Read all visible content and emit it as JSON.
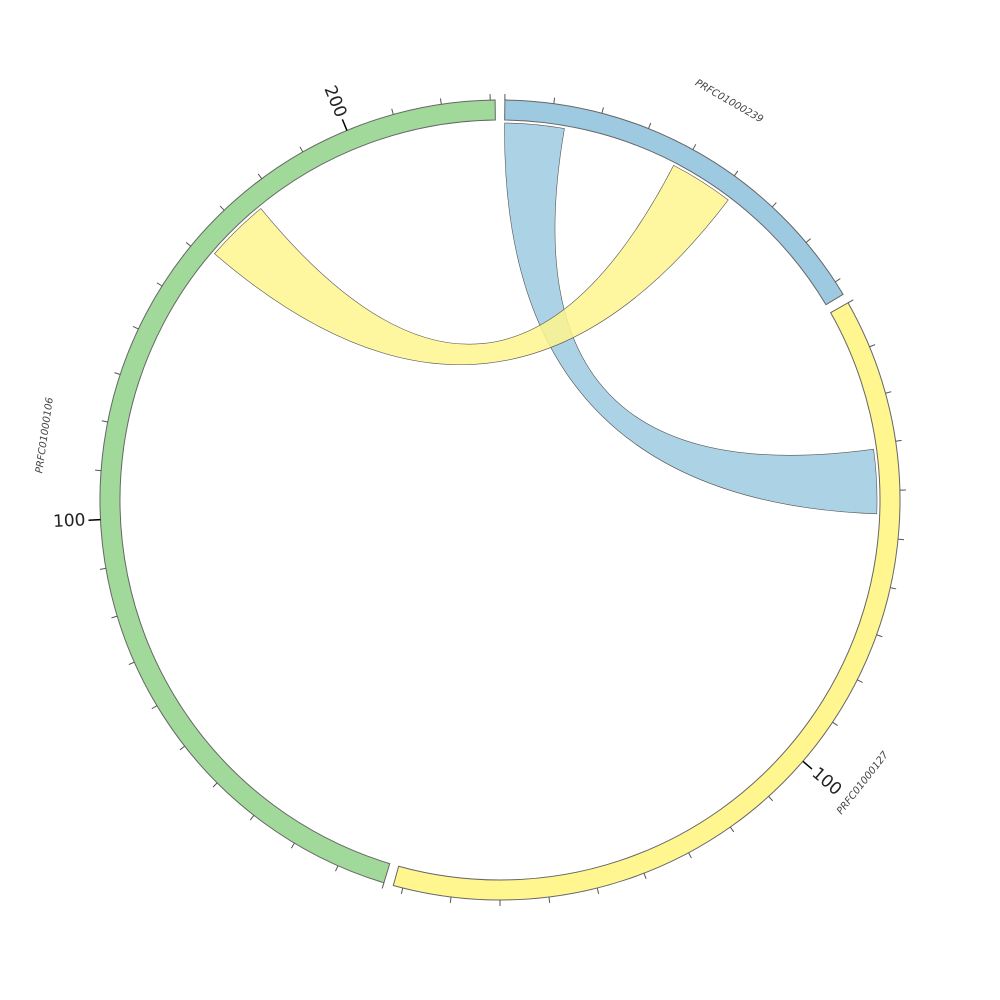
{
  "segments": [
    {
      "name": "PRFC01000239",
      "color": "#9ecae1",
      "length": 83,
      "major_ticks": []
    },
    {
      "name": "PRFC01000127",
      "color": "#fff68f",
      "length": 192,
      "major_ticks": [
        100
      ]
    },
    {
      "name": "PRFC01000106",
      "color": "#a1d99b",
      "length": 231,
      "major_ticks": [
        100,
        200
      ]
    }
  ],
  "tick_interval": 10,
  "links": [
    {
      "source": 0,
      "source_range": [
        0,
        13
      ],
      "target": 1,
      "target_range": [
        31,
        45
      ],
      "color": "#9ecae1"
    },
    {
      "source": 0,
      "source_range": [
        38,
        52
      ],
      "target": 2,
      "target_range": [
        162,
        176
      ],
      "color": "#fff68f"
    }
  ]
}
